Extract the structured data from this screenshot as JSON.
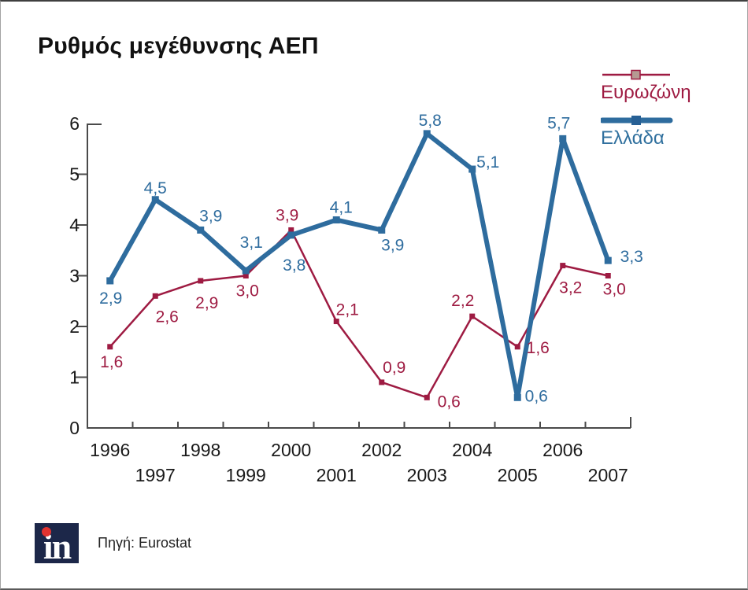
{
  "page": {
    "title": "Ρυθμός μεγέθυνσης ΑΕΠ"
  },
  "legend": {
    "position": "top-right",
    "items": [
      {
        "label": "Ευρωζώνη",
        "marker_fill": "#b59a92",
        "marker_stroke": "#9e1b42"
      },
      {
        "label": "Ελλάδα",
        "marker_fill": "#276095",
        "marker_stroke": "#276095"
      }
    ]
  },
  "footer": {
    "logo_text": "in",
    "source": "Πηγή: Eurostat"
  },
  "colors": {
    "eurozone": "#9e1b42",
    "greece": "#2e6c9e",
    "axis": "#4a4a4a",
    "tick_text": "#1a1a1a",
    "logo_bg": "#1c2749",
    "logo_dot": "#e23330"
  },
  "chart_data": {
    "type": "line",
    "title": "Ρυθμός μεγέθυνσης ΑΕΠ",
    "xlabel": "",
    "ylabel": "",
    "x": [
      1996,
      1997,
      1998,
      1999,
      2000,
      2001,
      2002,
      2003,
      2004,
      2005,
      2006,
      2007
    ],
    "x_tick_labels": [
      "1996",
      "1997",
      "1998",
      "1999",
      "2000",
      "2001",
      "2002",
      "2003",
      "2004",
      "2005",
      "2006",
      "2007"
    ],
    "ylim": [
      0,
      6
    ],
    "yticks": [
      0,
      1,
      2,
      3,
      4,
      5,
      6
    ],
    "grid": false,
    "legend_position": "right-top",
    "decimal_separator": ",",
    "series": [
      {
        "name": "Ευρωζώνη",
        "color": "#9e1b42",
        "line_width": 2.5,
        "marker": "square",
        "marker_size": 7,
        "values": [
          1.6,
          2.6,
          2.9,
          3.0,
          3.9,
          2.1,
          0.9,
          0.6,
          2.2,
          1.6,
          3.2,
          3.0
        ],
        "point_labels": [
          "1,6",
          "2,6",
          "2,9",
          "3,0",
          "3,9",
          "2,1",
          "0,9",
          "0,6",
          "2,2",
          "1,6",
          "3,2",
          "3,0"
        ],
        "label_offsets": [
          [
            2,
            19
          ],
          [
            15,
            26
          ],
          [
            8,
            28
          ],
          [
            2,
            19
          ],
          [
            -5,
            -19
          ],
          [
            14,
            -15
          ],
          [
            16,
            -19
          ],
          [
            28,
            5
          ],
          [
            -12,
            -20
          ],
          [
            26,
            1
          ],
          [
            10,
            28
          ],
          [
            8,
            17
          ]
        ]
      },
      {
        "name": "Ελλάδα",
        "color": "#2e6c9e",
        "line_width": 6,
        "marker": "square",
        "marker_size": 9,
        "values": [
          2.9,
          4.5,
          3.9,
          3.1,
          3.8,
          4.1,
          3.9,
          5.8,
          5.1,
          0.6,
          5.7,
          3.3
        ],
        "point_labels": [
          "2,9",
          "4,5",
          "3,9",
          "3,1",
          "3,8",
          "4,1",
          "3,9",
          "5,8",
          "5,1",
          "0,6",
          "5,7",
          "3,3"
        ],
        "label_offsets": [
          [
            1,
            22
          ],
          [
            0,
            -15
          ],
          [
            13,
            -18
          ],
          [
            7,
            -36
          ],
          [
            4,
            38
          ],
          [
            6,
            -16
          ],
          [
            14,
            19
          ],
          [
            4,
            -17
          ],
          [
            20,
            -9
          ],
          [
            24,
            -2
          ],
          [
            -5,
            -20
          ],
          [
            30,
            -5
          ]
        ]
      }
    ]
  }
}
